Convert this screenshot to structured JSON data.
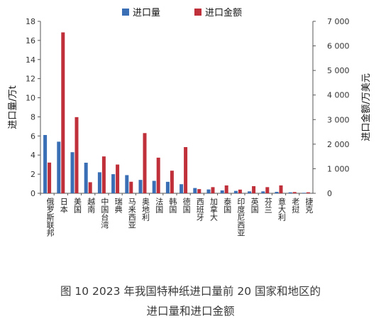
{
  "caption": {
    "line1": "图 10    2023 年我国特种纸进口量前 20 国家和地区的",
    "line2": "进口量和进口金额"
  },
  "chart_data": {
    "type": "bar",
    "categories": [
      "俄罗斯联邦",
      "日本",
      "美国",
      "越南",
      "中国台湾",
      "瑞典",
      "马来西亚",
      "奥地利",
      "法国",
      "韩国",
      "德国",
      "西班牙",
      "加拿大",
      "泰国",
      "印度尼西亚",
      "英国",
      "芬兰",
      "意大利",
      "老挝",
      "捷克"
    ],
    "series": [
      {
        "name": "进口量",
        "axis": "left",
        "color": "#3a6eb5",
        "values": [
          6.1,
          5.4,
          4.3,
          3.2,
          2.2,
          2.0,
          1.9,
          1.4,
          1.3,
          1.2,
          0.95,
          0.55,
          0.4,
          0.3,
          0.25,
          0.2,
          0.2,
          0.15,
          0.1,
          0.05
        ]
      },
      {
        "name": "进口金额",
        "axis": "right",
        "color": "#c0303a",
        "values": [
          1250,
          6550,
          3100,
          450,
          1500,
          1170,
          470,
          2450,
          1450,
          920,
          1880,
          170,
          250,
          320,
          150,
          290,
          250,
          320,
          50,
          40
        ]
      }
    ],
    "ylabel_left": "进口量/万t",
    "ylabel_right": "进口金额/万美元",
    "ylim_left": [
      0,
      18
    ],
    "ylim_right": [
      0,
      7000
    ],
    "yticks_left": [
      "0",
      "2",
      "4",
      "6",
      "8",
      "10",
      "12",
      "14",
      "16",
      "18"
    ],
    "yticks_right": [
      "0",
      "1 000",
      "2 000",
      "3 000",
      "4 000",
      "5 000",
      "6 000",
      "7 000"
    ],
    "legend": {
      "placement": "top-center"
    },
    "grid": false
  }
}
